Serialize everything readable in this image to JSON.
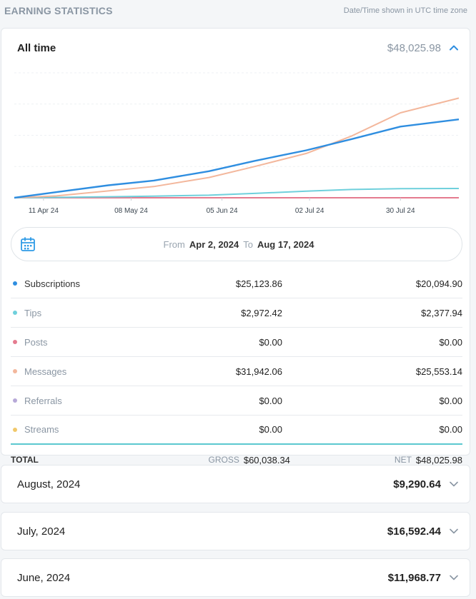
{
  "header": {
    "title": "EARNING STATISTICS",
    "timezone_note": "Date/Time shown in UTC time zone"
  },
  "summary": {
    "label": "All time",
    "amount": "$48,025.98"
  },
  "range": {
    "from_label": "From",
    "from_value": "Apr 2, 2024",
    "to_label": "To",
    "to_value": "Aug 17, 2024"
  },
  "rows": [
    {
      "name": "Subscriptions",
      "gross": "$25,123.86",
      "net": "$20,094.90",
      "color": "#2f8ee0",
      "muted": false
    },
    {
      "name": "Tips",
      "gross": "$2,972.42",
      "net": "$2,377.94",
      "color": "#6fd0dc",
      "muted": true
    },
    {
      "name": "Posts",
      "gross": "$0.00",
      "net": "$0.00",
      "color": "#e57b8f",
      "muted": true
    },
    {
      "name": "Messages",
      "gross": "$31,942.06",
      "net": "$25,553.14",
      "color": "#f3b79c",
      "muted": true
    },
    {
      "name": "Referrals",
      "gross": "$0.00",
      "net": "$0.00",
      "color": "#b7a9d8",
      "muted": true
    },
    {
      "name": "Streams",
      "gross": "$0.00",
      "net": "$0.00",
      "color": "#f1c86a",
      "muted": true
    }
  ],
  "total": {
    "label": "TOTAL",
    "gross_label": "GROSS",
    "gross_value": "$60,038.34",
    "net_label": "NET",
    "net_value": "$48,025.98"
  },
  "months": [
    {
      "label": "August, 2024",
      "amount": "$9,290.64"
    },
    {
      "label": "July, 2024",
      "amount": "$16,592.44"
    },
    {
      "label": "June, 2024",
      "amount": "$11,968.77"
    }
  ],
  "chart_data": {
    "type": "line",
    "x": [
      "2024-04-02",
      "2024-04-15",
      "2024-05-01",
      "2024-05-15",
      "2024-06-01",
      "2024-06-15",
      "2024-07-01",
      "2024-07-15",
      "2024-07-30",
      "2024-08-17"
    ],
    "tick_labels": [
      "11 Apr 24",
      "08 May 24",
      "05 Jun 24",
      "02 Jul 24",
      "30 Jul 24"
    ],
    "tick_dates": [
      "2024-04-11",
      "2024-05-08",
      "2024-06-05",
      "2024-07-02",
      "2024-07-30"
    ],
    "series": [
      {
        "name": "Subscriptions",
        "color": "#2f8ee0",
        "values": [
          0,
          1800,
          4000,
          5500,
          8500,
          11800,
          15200,
          18800,
          22800,
          25100
        ]
      },
      {
        "name": "Messages",
        "color": "#f3b79c",
        "values": [
          0,
          600,
          2200,
          3600,
          6500,
          10000,
          14200,
          19800,
          27200,
          31900
        ]
      },
      {
        "name": "Tips",
        "color": "#6fd0dc",
        "values": [
          0,
          120,
          330,
          520,
          820,
          1400,
          2100,
          2650,
          2900,
          2970
        ]
      },
      {
        "name": "Posts",
        "color": "#e57b8f",
        "values": [
          0,
          0,
          0,
          0,
          0,
          0,
          0,
          0,
          0,
          0
        ]
      },
      {
        "name": "Referrals",
        "color": "#b7a9d8",
        "values": [
          0,
          0,
          0,
          0,
          0,
          0,
          0,
          0,
          0,
          0
        ]
      },
      {
        "name": "Streams",
        "color": "#f1c86a",
        "values": [
          0,
          0,
          0,
          0,
          0,
          0,
          0,
          0,
          0,
          0
        ]
      }
    ],
    "ylim": [
      0,
      40000
    ],
    "grid": true
  }
}
